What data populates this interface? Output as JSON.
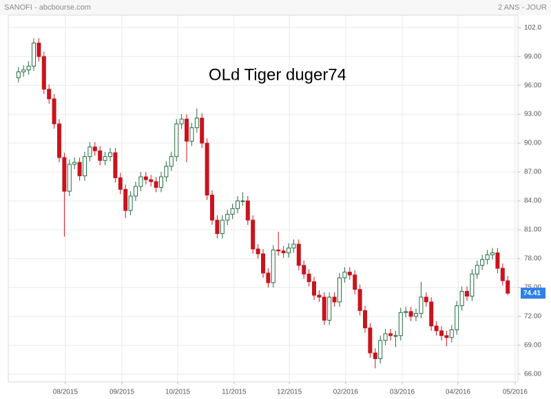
{
  "chart_data": {
    "type": "candlestick",
    "title": "SANOFI - abcbourse.com",
    "period": "2 ANS - JOUR",
    "watermark": "OLd Tiger duger74",
    "last_price": 74.41,
    "last_price_color": "#2f80e8",
    "up_color": "#1f6b3f",
    "down_color": "#c8141e",
    "grid": true,
    "xlim": [
      0,
      200
    ],
    "xticks": [
      {
        "value": 22.4,
        "label": "08/2015"
      },
      {
        "value": 44.6,
        "label": "09/2015"
      },
      {
        "value": 66.5,
        "label": "10/2015"
      },
      {
        "value": 88.6,
        "label": "11/2015"
      },
      {
        "value": 110.3,
        "label": "12/2015"
      },
      {
        "value": 132.4,
        "label": "02/2016"
      },
      {
        "value": 154.6,
        "label": "03/2016"
      },
      {
        "value": 176.5,
        "label": "04/2016"
      },
      {
        "value": 198.9,
        "label": "05/2016"
      }
    ],
    "ylim": [
      65.2,
      103.3
    ],
    "yticks": [
      {
        "value": 66,
        "label": "66.00"
      },
      {
        "value": 69,
        "label": "69.00"
      },
      {
        "value": 72,
        "label": "72.00"
      },
      {
        "value": 75,
        "label": "75.00"
      },
      {
        "value": 78,
        "label": "78.00"
      },
      {
        "value": 81,
        "label": "81.00"
      },
      {
        "value": 84,
        "label": "84.00"
      },
      {
        "value": 87,
        "label": "87.00"
      },
      {
        "value": 90,
        "label": "90.00"
      },
      {
        "value": 93,
        "label": "93.00"
      },
      {
        "value": 96,
        "label": "96.00"
      },
      {
        "value": 99,
        "label": "99.00"
      },
      {
        "value": 102,
        "label": "102.0"
      }
    ],
    "x": [
      4,
      6,
      8,
      10,
      12,
      14,
      16,
      18,
      20,
      22,
      24,
      26,
      28,
      30,
      32,
      34,
      36,
      38,
      40,
      42,
      44,
      46,
      48,
      50,
      52,
      54,
      56,
      58,
      60,
      62,
      64,
      66,
      68,
      70,
      72,
      74,
      76,
      78,
      80,
      82,
      84,
      86,
      88,
      90,
      92,
      94,
      96,
      98,
      100,
      102,
      104,
      106,
      108,
      110,
      112,
      114,
      116,
      118,
      120,
      122,
      124,
      126,
      128,
      130,
      132,
      134,
      136,
      138,
      140,
      142,
      144,
      146,
      148,
      150,
      152,
      154,
      156,
      158,
      160,
      162,
      164,
      166,
      168,
      170,
      172,
      174,
      176,
      178,
      180,
      182,
      184,
      186,
      188,
      190,
      192,
      194,
      196
    ],
    "open": [
      96.8,
      97.4,
      97.6,
      98.0,
      100.4,
      99.0,
      95.6,
      94.6,
      92.0,
      88.5,
      85.0,
      87.8,
      88.0,
      86.6,
      88.6,
      89.6,
      89.2,
      88.2,
      88.6,
      89.0,
      86.4,
      85.2,
      83.0,
      84.5,
      85.5,
      86.5,
      86.2,
      86.0,
      85.4,
      86.5,
      87.6,
      88.6,
      92.0,
      92.5,
      90.2,
      91.6,
      92.6,
      90.0,
      84.6,
      82.0,
      80.6,
      82.0,
      82.6,
      83.2,
      84.0,
      84.0,
      82.0,
      79.0,
      78.5,
      76.5,
      75.5,
      78.9,
      78.8,
      78.6,
      79.1,
      79.5,
      77.3,
      76.4,
      75.6,
      74.2,
      74.0,
      71.6,
      74.0,
      73.5,
      76.0,
      76.6,
      76.3,
      74.8,
      72.6,
      70.8,
      68.2,
      67.6,
      69.5,
      70.2,
      70.0,
      70.0,
      72.4,
      72.5,
      72.0,
      72.3,
      74.0,
      73.5,
      71.0,
      70.5,
      70.0,
      69.8,
      70.6,
      73.1,
      74.6,
      74.1,
      76.4,
      77.3,
      77.9,
      78.4,
      78.6,
      77.0,
      75.7
    ],
    "high": [
      97.9,
      98.1,
      98.5,
      100.9,
      100.9,
      99.5,
      96.1,
      95.1,
      92.5,
      89.0,
      88.3,
      88.5,
      88.5,
      89.1,
      90.1,
      90.1,
      89.7,
      89.1,
      89.5,
      89.5,
      86.9,
      85.7,
      85.0,
      86.0,
      87.0,
      87.0,
      86.7,
      86.5,
      87.0,
      88.1,
      89.1,
      92.5,
      93.0,
      93.0,
      92.1,
      93.6,
      93.1,
      90.5,
      85.1,
      82.5,
      82.5,
      83.1,
      83.7,
      84.5,
      84.9,
      84.5,
      82.5,
      79.5,
      79.0,
      77.0,
      79.4,
      80.8,
      79.3,
      79.6,
      80.0,
      80.0,
      77.8,
      76.9,
      76.1,
      74.7,
      74.5,
      74.5,
      74.5,
      76.5,
      77.1,
      77.1,
      76.8,
      75.3,
      73.1,
      71.3,
      68.7,
      70.0,
      70.7,
      70.7,
      70.5,
      72.9,
      73.0,
      73.0,
      72.8,
      75.6,
      74.5,
      74.0,
      71.5,
      71.0,
      70.5,
      71.1,
      73.6,
      75.1,
      75.1,
      76.9,
      77.8,
      78.4,
      78.9,
      79.1,
      79.1,
      77.5,
      76.2
    ],
    "low": [
      96.3,
      96.9,
      97.1,
      97.5,
      98.5,
      95.1,
      94.1,
      91.5,
      88.0,
      80.3,
      84.5,
      87.3,
      86.1,
      86.1,
      88.1,
      88.7,
      87.7,
      87.7,
      88.1,
      85.9,
      84.7,
      82.2,
      82.5,
      84.0,
      85.0,
      85.7,
      85.5,
      84.9,
      84.9,
      86.0,
      87.1,
      88.1,
      91.5,
      88.0,
      89.7,
      91.1,
      89.5,
      84.1,
      81.5,
      80.1,
      80.1,
      81.5,
      82.1,
      82.7,
      83.5,
      81.5,
      78.5,
      78.0,
      76.0,
      75.0,
      75.0,
      78.3,
      78.1,
      78.1,
      78.6,
      76.8,
      75.9,
      75.1,
      73.7,
      73.5,
      71.1,
      71.1,
      73.0,
      73.0,
      75.5,
      75.8,
      74.3,
      72.1,
      70.3,
      67.7,
      66.6,
      67.1,
      69.0,
      69.5,
      68.8,
      69.5,
      71.9,
      71.5,
      71.5,
      71.8,
      73.0,
      70.5,
      70.0,
      69.5,
      68.9,
      69.3,
      70.1,
      72.6,
      73.6,
      73.6,
      75.9,
      76.8,
      77.4,
      77.9,
      76.5,
      75.2,
      74.2
    ],
    "close": [
      97.4,
      97.6,
      98.0,
      100.4,
      99.0,
      95.6,
      94.6,
      92.0,
      88.5,
      85.0,
      87.8,
      88.0,
      86.6,
      88.6,
      89.6,
      89.2,
      88.2,
      88.6,
      89.0,
      86.4,
      85.2,
      83.0,
      84.5,
      85.5,
      86.5,
      86.2,
      86.0,
      85.4,
      86.5,
      87.6,
      88.6,
      92.0,
      92.5,
      90.2,
      91.6,
      92.6,
      90.0,
      84.6,
      82.0,
      80.6,
      82.0,
      82.6,
      83.2,
      84.0,
      84.0,
      82.0,
      79.0,
      78.5,
      76.5,
      75.5,
      78.9,
      78.8,
      78.6,
      79.1,
      79.5,
      77.3,
      76.4,
      75.6,
      74.2,
      74.0,
      71.6,
      74.0,
      73.5,
      76.0,
      76.6,
      76.3,
      74.8,
      72.6,
      70.8,
      68.2,
      67.6,
      69.5,
      70.2,
      70.0,
      70.0,
      72.4,
      72.5,
      72.0,
      72.3,
      74.0,
      73.5,
      71.0,
      70.5,
      70.0,
      69.8,
      70.6,
      73.1,
      74.6,
      74.1,
      76.4,
      77.3,
      77.9,
      78.4,
      78.6,
      77.0,
      75.7,
      74.41
    ]
  }
}
